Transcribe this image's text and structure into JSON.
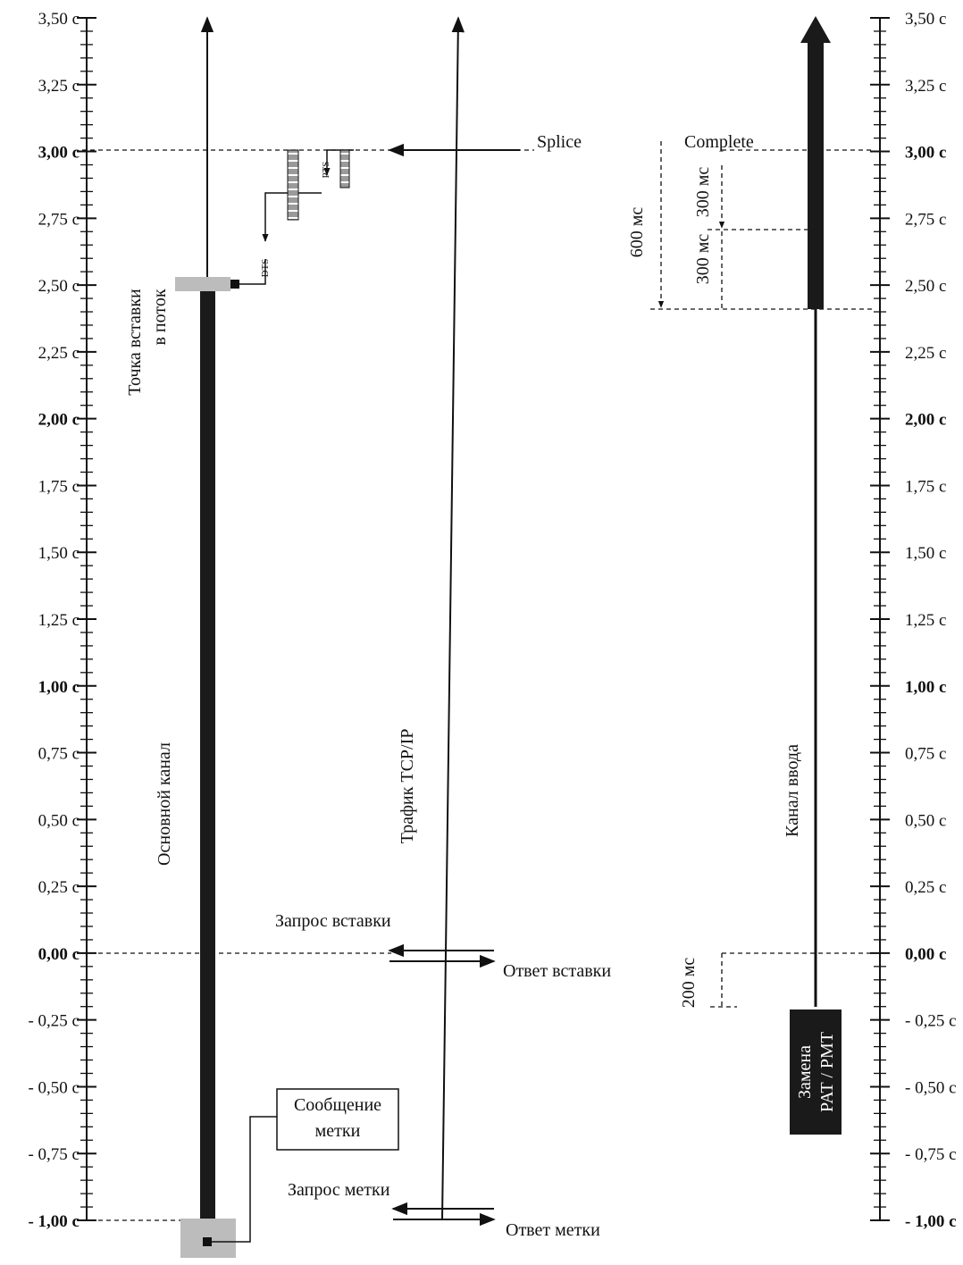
{
  "axis": {
    "unit": "c",
    "min": -1.0,
    "max": 3.5,
    "ticks": [
      {
        "value": 3.5,
        "label": "3,50 с",
        "bold": false
      },
      {
        "value": 3.25,
        "label": "3,25 с",
        "bold": false
      },
      {
        "value": 3.0,
        "label": "3,00 с",
        "bold": true
      },
      {
        "value": 2.75,
        "label": "2,75 с",
        "bold": false
      },
      {
        "value": 2.5,
        "label": "2,50 с",
        "bold": false
      },
      {
        "value": 2.25,
        "label": "2,25 с",
        "bold": false
      },
      {
        "value": 2.0,
        "label": "2,00 с",
        "bold": true
      },
      {
        "value": 1.75,
        "label": "1,75 с",
        "bold": false
      },
      {
        "value": 1.5,
        "label": "1,50 с",
        "bold": false
      },
      {
        "value": 1.25,
        "label": "1,25 с",
        "bold": false
      },
      {
        "value": 1.0,
        "label": "1,00 с",
        "bold": true
      },
      {
        "value": 0.75,
        "label": "0,75 с",
        "bold": false
      },
      {
        "value": 0.5,
        "label": "0,50 с",
        "bold": false
      },
      {
        "value": 0.25,
        "label": "0,25 с",
        "bold": false
      },
      {
        "value": 0.0,
        "label": "0,00 с",
        "bold": true
      },
      {
        "value": -0.25,
        "label": "- 0,25 с",
        "bold": false
      },
      {
        "value": -0.5,
        "label": "- 0,50 с",
        "bold": false
      },
      {
        "value": -0.75,
        "label": "- 0,75 с",
        "bold": false
      },
      {
        "value": -1.0,
        "label": "- 1,00 с",
        "bold": true
      }
    ]
  },
  "main_channel": {
    "label": "Основной канал",
    "insert_point_label_line1": "Точка вставки",
    "insert_point_label_line2": "в поток",
    "insert_point_time": 2.5,
    "dts_label": "DTS",
    "pts_label": "PTS",
    "cue_message_line1": "Сообщение",
    "cue_message_line2": "метки"
  },
  "tcp_channel": {
    "label": "Трафик TCP/IP",
    "splice_label": "Splice",
    "complete_label": "Complete",
    "insert_request_label": "Запрос вставки",
    "insert_response_label": "Ответ вставки",
    "cue_request_label": "Запрос метки",
    "cue_response_label": "Ответ метки"
  },
  "insert_channel": {
    "label": "Канал ввода",
    "start_time": 2.4,
    "pat_pmt_line1": "Замена",
    "pat_pmt_line2": "PAT / PMT",
    "duration_600": "600 мс",
    "duration_300a": "300 мс",
    "duration_300b": "300 мс",
    "duration_200": "200 мс"
  }
}
